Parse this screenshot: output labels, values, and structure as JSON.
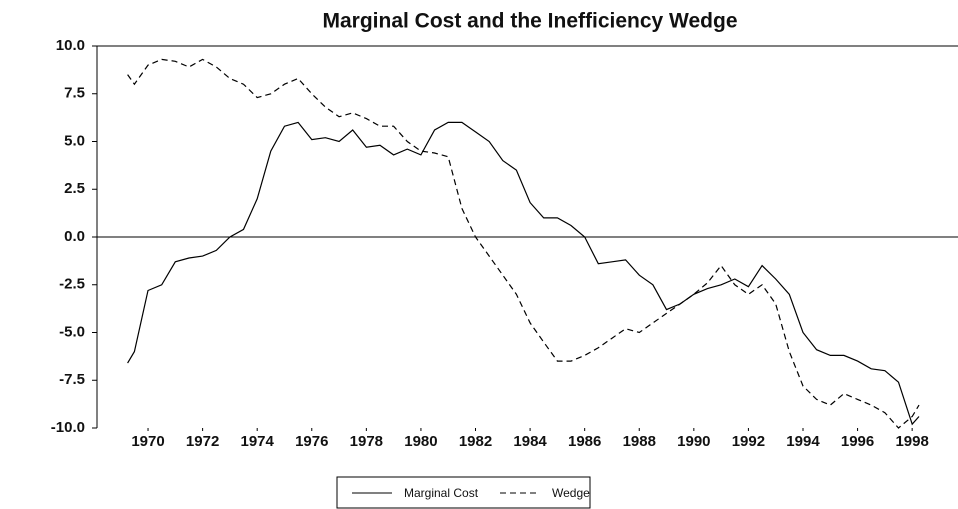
{
  "chart_data": {
    "type": "line",
    "title": "Marginal Cost and the Inefficiency Wedge",
    "x": [
      1969.25,
      1969.5,
      1970,
      1970.5,
      1971,
      1971.5,
      1972,
      1972.5,
      1973,
      1973.5,
      1974,
      1974.5,
      1975,
      1975.5,
      1976,
      1976.5,
      1977,
      1977.5,
      1978,
      1978.5,
      1979,
      1979.5,
      1980,
      1980.5,
      1981,
      1981.5,
      1982,
      1982.5,
      1983,
      1983.5,
      1984,
      1984.5,
      1985,
      1985.5,
      1986,
      1986.5,
      1987,
      1987.5,
      1988,
      1988.5,
      1989,
      1989.5,
      1990,
      1990.5,
      1991,
      1991.5,
      1992,
      1992.5,
      1993,
      1993.5,
      1994,
      1994.5,
      1995,
      1995.5,
      1996,
      1996.5,
      1997,
      1997.5,
      1998,
      1998.25
    ],
    "series": [
      {
        "name": "Marginal Cost",
        "color": "#000000",
        "dashed": false,
        "values": [
          -6.6,
          -6.0,
          -2.8,
          -2.5,
          -1.3,
          -1.1,
          -1.0,
          -0.7,
          0.0,
          0.4,
          2.0,
          4.5,
          5.8,
          6.0,
          5.1,
          5.2,
          5.0,
          5.6,
          4.7,
          4.8,
          4.3,
          4.6,
          4.3,
          5.6,
          6.0,
          6.0,
          5.5,
          5.0,
          4.0,
          3.5,
          1.8,
          1.0,
          1.0,
          0.6,
          0.0,
          -1.4,
          -1.3,
          -1.2,
          -2.0,
          -2.5,
          -3.8,
          -3.5,
          -3.0,
          -2.7,
          -2.5,
          -2.2,
          -2.6,
          -1.5,
          -2.2,
          -3.0,
          -5.0,
          -5.9,
          -6.2,
          -6.2,
          -6.5,
          -6.9,
          -7.0,
          -7.6,
          -9.8,
          -9.4
        ]
      },
      {
        "name": "Wedge",
        "color": "#000000",
        "dashed": true,
        "values": [
          8.5,
          8.0,
          9.0,
          9.3,
          9.2,
          8.9,
          9.3,
          8.9,
          8.3,
          8.0,
          7.3,
          7.5,
          8.0,
          8.3,
          7.5,
          6.8,
          6.3,
          6.5,
          6.2,
          5.8,
          5.8,
          5.0,
          4.5,
          4.4,
          4.2,
          1.5,
          0.0,
          -1.0,
          -2.0,
          -3.0,
          -4.5,
          -5.5,
          -6.5,
          -6.5,
          -6.2,
          -5.8,
          -5.3,
          -4.8,
          -5.0,
          -4.5,
          -4.0,
          -3.5,
          -3.0,
          -2.4,
          -1.5,
          -2.5,
          -3.0,
          -2.5,
          -3.5,
          -6.0,
          -7.8,
          -8.5,
          -8.8,
          -8.2,
          -8.5,
          -8.8,
          -9.2,
          -10.0,
          -9.4,
          -8.8
        ]
      }
    ],
    "xlim": [
      1968.13,
      1999.68
    ],
    "xticks": [
      1970,
      1972,
      1974,
      1976,
      1978,
      1980,
      1982,
      1984,
      1986,
      1988,
      1990,
      1992,
      1994,
      1996,
      1998
    ],
    "ylim": [
      -10,
      10
    ],
    "yticks": [
      {
        "value": 10,
        "label": "10.0"
      },
      7.5,
      {
        "value": 5,
        "label": "5.0"
      },
      2.5,
      {
        "value": 0,
        "label": "0.0"
      },
      -2.5,
      {
        "value": -5,
        "label": "-5.0"
      },
      -7.5,
      {
        "value": -10,
        "label": "-10.0"
      }
    ],
    "zero_line": true
  }
}
